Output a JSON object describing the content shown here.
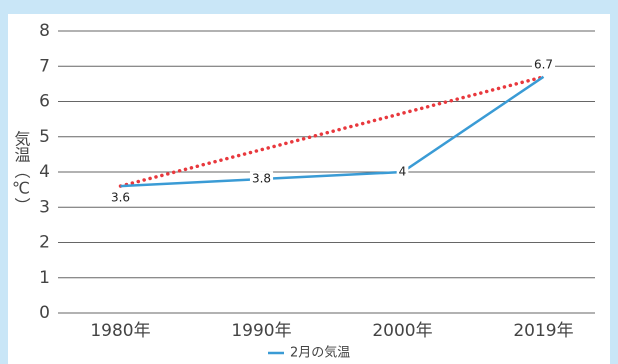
{
  "chart_data": {
    "type": "line",
    "y_label": "気温（℃）",
    "categories": [
      "1980年",
      "1990年",
      "2000年",
      "2019年"
    ],
    "series": [
      {
        "name": "2月の気温",
        "color": "#3a9bd5",
        "values": [
          3.6,
          3.8,
          4,
          6.7
        ]
      }
    ],
    "trendline": {
      "color": "#e8383d",
      "style": "dotted"
    },
    "ylim": [
      0,
      8
    ],
    "yticks": [
      0,
      1,
      2,
      3,
      4,
      5,
      6,
      7,
      8
    ],
    "grid": true,
    "legend": "bottom"
  }
}
